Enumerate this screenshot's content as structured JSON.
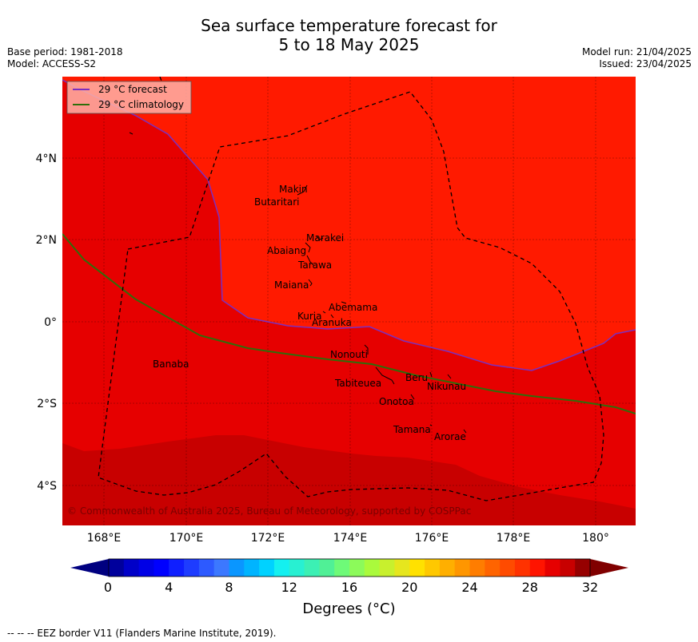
{
  "title_line1": "Sea surface temperature forecast for",
  "title_line2": "5 to 18 May 2025",
  "meta_left": {
    "base_period": "Base period: 1981-2018",
    "model": "Model: ACCESS-S2"
  },
  "meta_right": {
    "model_run": "Model run: 21/04/2025",
    "issued": "Issued: 23/04/2025"
  },
  "legend": {
    "forecast": "29 °C  forecast",
    "climatology": "29 °C  climatology"
  },
  "lat_labels": [
    "4°N",
    "2°N",
    "0°",
    "2°S",
    "4°S"
  ],
  "lon_labels": [
    "168°E",
    "170°E",
    "172°E",
    "174°E",
    "176°E",
    "178°E",
    "180°"
  ],
  "islands": [
    "Makin",
    "Butaritari",
    "Marakei",
    "Abaiang",
    "Tarawa",
    "Maiana",
    "Abemama",
    "Kuria",
    "Aranuka",
    "Nonouti",
    "Banaba",
    "Beru",
    "Tabiteuea",
    "Nikunau",
    "Onotoa",
    "Tamana",
    "Arorae"
  ],
  "copyright": "© Commonwealth of Australia 2025, Bureau of Meteorology, supported by COSPPac",
  "colorbar": {
    "ticks": [
      "0",
      "4",
      "8",
      "12",
      "16",
      "20",
      "24",
      "28",
      "32"
    ],
    "title": "Degrees (°C)",
    "colors": [
      "#00009c",
      "#0000c8",
      "#0000e6",
      "#0000ff",
      "#0f1fff",
      "#1e3cff",
      "#2d5aff",
      "#3c78ff",
      "#0a96ff",
      "#00b4ff",
      "#00d2ff",
      "#14f0f0",
      "#28f0d2",
      "#3cf0b4",
      "#50f096",
      "#6efa78",
      "#8cfa5a",
      "#aafa3c",
      "#c8f02d",
      "#e6e61e",
      "#ffe100",
      "#ffc800",
      "#ffaf00",
      "#ff9600",
      "#ff7d00",
      "#ff6400",
      "#ff4b00",
      "#ff3200",
      "#ff1400",
      "#e60000",
      "#c80000",
      "#960000"
    ],
    "under_color": "#000080",
    "over_color": "#800000"
  },
  "footnote": "--  --  -- EEZ border V11 (Flanders Marine Institute, 2019).",
  "colors": {
    "bg_ge_30": "#ff1a00",
    "band_29_30": "#e60000",
    "band_28_29": "#c80000",
    "forecast_line": "#7b2fbf",
    "climatology_line": "#2e6e0a"
  }
}
